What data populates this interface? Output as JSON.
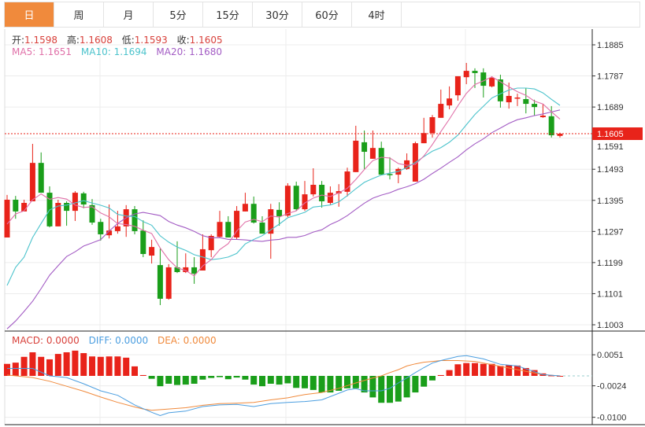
{
  "tabs": [
    {
      "label": "日",
      "active": true
    },
    {
      "label": "周"
    },
    {
      "label": "月"
    },
    {
      "label": "5分"
    },
    {
      "label": "15分"
    },
    {
      "label": "30分"
    },
    {
      "label": "60分"
    },
    {
      "label": "4时"
    }
  ],
  "ohlc_info": {
    "open_label": "开:",
    "open": "1.1598",
    "high_label": "高:",
    "high": "1.1608",
    "low_label": "低:",
    "low": "1.1593",
    "close_label": "收:",
    "close": "1.1605"
  },
  "ma_info": {
    "ma5": "MA5: 1.1651",
    "ma10": "MA10: 1.1694",
    "ma20": "MA20: 1.1680"
  },
  "macd_info": {
    "macd": "MACD: 0.0000",
    "diff": "DIFF: 0.0000",
    "dea": "DEA: 0.0000"
  },
  "colors": {
    "up": "#e8231a",
    "down": "#1a9e1a",
    "ma5": "#e070a8",
    "ma10": "#4cc3cc",
    "ma20": "#a35cc4",
    "diff": "#4b9ee0",
    "dea": "#f08a3c",
    "accent": "#f08a3c",
    "info_value": "#d8403a"
  },
  "current_price": "1.1605",
  "chart_data": [
    {
      "type": "candlestick",
      "price_ticks": [
        "1.1885",
        "1.1787",
        "1.1689",
        "1.1591",
        "1.1493",
        "1.1395",
        "1.1297",
        "1.1199",
        "1.1101",
        "1.1003"
      ],
      "ylim": [
        1.1003,
        1.1885
      ],
      "grid": true,
      "candles": [
        [
          1.1278,
          1.1412,
          1.1278,
          1.1397
        ],
        [
          1.1397,
          1.1409,
          1.1337,
          1.136
        ],
        [
          1.136,
          1.1397,
          1.136,
          1.1387
        ],
        [
          1.1392,
          1.1573,
          1.1392,
          1.1513
        ],
        [
          1.1513,
          1.1546,
          1.1419,
          1.1419
        ],
        [
          1.1419,
          1.1439,
          1.131,
          1.1313
        ],
        [
          1.1313,
          1.1397,
          1.1313,
          1.1387
        ],
        [
          1.1387,
          1.1392,
          1.1315,
          1.1362
        ],
        [
          1.1362,
          1.1424,
          1.133,
          1.1419
        ],
        [
          1.1417,
          1.1422,
          1.137,
          1.1382
        ],
        [
          1.138,
          1.1399,
          1.1318,
          1.1325
        ],
        [
          1.1327,
          1.1337,
          1.1268,
          1.1288
        ],
        [
          1.1285,
          1.1382,
          1.1275,
          1.13
        ],
        [
          1.1298,
          1.1362,
          1.129,
          1.1313
        ],
        [
          1.1313,
          1.138,
          1.128,
          1.1367
        ],
        [
          1.1367,
          1.1377,
          1.1288,
          1.1298
        ],
        [
          1.13,
          1.1332,
          1.1216,
          1.1226
        ],
        [
          1.1221,
          1.1271,
          1.1196,
          1.1248
        ],
        [
          1.1191,
          1.1243,
          1.1065,
          1.1085
        ],
        [
          1.1085,
          1.1194,
          1.1082,
          1.1184
        ],
        [
          1.1184,
          1.1266,
          1.1166,
          1.1169
        ],
        [
          1.1169,
          1.1228,
          1.1166,
          1.1184
        ],
        [
          1.1184,
          1.1216,
          1.1132,
          1.1164
        ],
        [
          1.1174,
          1.1288,
          1.1174,
          1.1241
        ],
        [
          1.1238,
          1.1288,
          1.1216,
          1.1283
        ],
        [
          1.128,
          1.1362,
          1.1278,
          1.1327
        ],
        [
          1.1327,
          1.1345,
          1.1278,
          1.1278
        ],
        [
          1.1278,
          1.1377,
          1.1273,
          1.1362
        ],
        [
          1.136,
          1.1419,
          1.136,
          1.1384
        ],
        [
          1.1384,
          1.1407,
          1.1322,
          1.1325
        ],
        [
          1.1325,
          1.1345,
          1.129,
          1.129
        ],
        [
          1.129,
          1.1384,
          1.1211,
          1.1367
        ],
        [
          1.1365,
          1.1389,
          1.1315,
          1.1345
        ],
        [
          1.1347,
          1.1449,
          1.1342,
          1.1441
        ],
        [
          1.1441,
          1.1454,
          1.1362,
          1.1367
        ],
        [
          1.1367,
          1.1456,
          1.1362,
          1.1414
        ],
        [
          1.1414,
          1.1496,
          1.1407,
          1.1444
        ],
        [
          1.1444,
          1.1456,
          1.1372,
          1.1392
        ],
        [
          1.1387,
          1.1439,
          1.1382,
          1.1419
        ],
        [
          1.1417,
          1.1446,
          1.1375,
          1.1424
        ],
        [
          1.1422,
          1.1498,
          1.1407,
          1.1486
        ],
        [
          1.1484,
          1.163,
          1.1484,
          1.1583
        ],
        [
          1.1578,
          1.1615,
          1.1494,
          1.1548
        ],
        [
          1.1526,
          1.1615,
          1.1526,
          1.156
        ],
        [
          1.156,
          1.158,
          1.1476,
          1.1476
        ],
        [
          1.1478,
          1.1531,
          1.1461,
          1.1476
        ],
        [
          1.1476,
          1.1498,
          1.1449,
          1.1494
        ],
        [
          1.1494,
          1.1543,
          1.1491,
          1.1521
        ],
        [
          1.1454,
          1.158,
          1.1454,
          1.1575
        ],
        [
          1.1575,
          1.1655,
          1.1575,
          1.1607
        ],
        [
          1.1607,
          1.1664,
          1.1593,
          1.1657
        ],
        [
          1.1655,
          1.1744,
          1.1655,
          1.1699
        ],
        [
          1.1694,
          1.1754,
          1.1682,
          1.1716
        ],
        [
          1.1726,
          1.1786,
          1.1709,
          1.1786
        ],
        [
          1.1783,
          1.1828,
          1.1761,
          1.1803
        ],
        [
          1.1803,
          1.1811,
          1.1749,
          1.1796
        ],
        [
          1.1798,
          1.1811,
          1.1719,
          1.1756
        ],
        [
          1.1754,
          1.1786,
          1.1751,
          1.1781
        ],
        [
          1.1776,
          1.1791,
          1.1687,
          1.1707
        ],
        [
          1.1704,
          1.1766,
          1.1684,
          1.1724
        ],
        [
          1.1716,
          1.1731,
          1.1692,
          1.1719
        ],
        [
          1.1714,
          1.1749,
          1.1669,
          1.1699
        ],
        [
          1.1699,
          1.1712,
          1.1662,
          1.1689
        ],
        [
          1.1657,
          1.1699,
          1.1655,
          1.1662
        ],
        [
          1.166,
          1.1692,
          1.1593,
          1.16
        ],
        [
          1.1598,
          1.1608,
          1.1593,
          1.1605
        ]
      ],
      "ma_leading": {
        "ma5": [
          1.132,
          1.1352,
          1.1362,
          1.1397
        ],
        "ma10": [
          1.1127,
          1.1184,
          1.1216,
          1.1278,
          1.1322,
          1.1365,
          1.1377,
          1.138,
          1.1387
        ],
        "ma20": [
          1.099,
          1.1015,
          1.1045,
          1.1077,
          1.1117,
          1.1159,
          1.1189,
          1.1218,
          1.1233,
          1.1251,
          1.1261,
          1.1271,
          1.1298,
          1.1322,
          1.134,
          1.1352,
          1.1357,
          1.1352,
          1.1347
        ]
      }
    },
    {
      "type": "bar+line",
      "name": "MACD",
      "macd_ticks": [
        "0.0051",
        "-0.0024",
        "-0.0100"
      ],
      "ylim": [
        -0.01,
        0.0051
      ],
      "histogram": [
        0.0029,
        0.0032,
        0.0046,
        0.0057,
        0.0046,
        0.004,
        0.0053,
        0.0057,
        0.0061,
        0.0055,
        0.0047,
        0.0046,
        0.0047,
        0.0047,
        0.0044,
        0.0023,
        0.0002,
        -0.0007,
        -0.0025,
        -0.0019,
        -0.0022,
        -0.0021,
        -0.0019,
        -0.0009,
        -0.0005,
        -0.0003,
        -0.0008,
        -0.0004,
        -0.0009,
        -0.0021,
        -0.0025,
        -0.0019,
        -0.0021,
        -0.0018,
        -0.0029,
        -0.003,
        -0.0034,
        -0.004,
        -0.004,
        -0.0036,
        -0.003,
        -0.003,
        -0.004,
        -0.0052,
        -0.0065,
        -0.0065,
        -0.0062,
        -0.0052,
        -0.004,
        -0.0026,
        -0.0011,
        0.0002,
        0.0014,
        0.0028,
        0.0031,
        0.0031,
        0.0029,
        0.0029,
        0.0024,
        0.0026,
        0.0025,
        0.0019,
        0.0014,
        0.0006,
        0.0001,
        0.0
      ],
      "diff": [
        [
          1,
          0.0018
        ],
        [
          4,
          0.0018
        ],
        [
          6,
          0.0
        ],
        [
          8,
          -0.0004
        ],
        [
          10,
          -0.0019
        ],
        [
          12,
          -0.0036
        ],
        [
          14,
          -0.0047
        ],
        [
          16,
          -0.007
        ],
        [
          18,
          -0.0088
        ],
        [
          19,
          -0.0096
        ],
        [
          20,
          -0.0089
        ],
        [
          22,
          -0.0085
        ],
        [
          24,
          -0.0074
        ],
        [
          26,
          -0.007
        ],
        [
          28,
          -0.0069
        ],
        [
          30,
          -0.0074
        ],
        [
          32,
          -0.0067
        ],
        [
          34,
          -0.0064
        ],
        [
          36,
          -0.0062
        ],
        [
          37,
          -0.006
        ],
        [
          38,
          -0.0058
        ],
        [
          40,
          -0.0042
        ],
        [
          41,
          -0.0034
        ],
        [
          42,
          -0.0031
        ],
        [
          43,
          -0.0036
        ],
        [
          45,
          -0.0036
        ],
        [
          46,
          -0.003
        ],
        [
          47,
          -0.0017
        ],
        [
          48,
          -0.0005
        ],
        [
          49,
          0.0008
        ],
        [
          50,
          0.002
        ],
        [
          51,
          0.0031
        ],
        [
          52,
          0.0037
        ],
        [
          54,
          0.0047
        ],
        [
          55,
          0.0049
        ],
        [
          57,
          0.0041
        ],
        [
          59,
          0.0028
        ],
        [
          61,
          0.0024
        ],
        [
          63,
          0.001
        ],
        [
          64,
          0.0003
        ],
        [
          66,
          0.0
        ]
      ],
      "dea": [
        [
          1,
          0.0002
        ],
        [
          4,
          -0.0004
        ],
        [
          6,
          -0.0013
        ],
        [
          8,
          -0.0025
        ],
        [
          10,
          -0.0037
        ],
        [
          12,
          -0.0051
        ],
        [
          14,
          -0.0064
        ],
        [
          16,
          -0.0075
        ],
        [
          17,
          -0.008
        ],
        [
          18,
          -0.0083
        ],
        [
          20,
          -0.008
        ],
        [
          22,
          -0.0077
        ],
        [
          24,
          -0.0071
        ],
        [
          26,
          -0.0067
        ],
        [
          28,
          -0.0066
        ],
        [
          30,
          -0.0064
        ],
        [
          32,
          -0.0058
        ],
        [
          34,
          -0.0053
        ],
        [
          36,
          -0.0045
        ],
        [
          38,
          -0.004
        ],
        [
          40,
          -0.003
        ],
        [
          42,
          -0.0017
        ],
        [
          44,
          -0.0005
        ],
        [
          45,
          0.0
        ],
        [
          46,
          0.0008
        ],
        [
          47,
          0.0015
        ],
        [
          48,
          0.0024
        ],
        [
          49,
          0.0029
        ],
        [
          50,
          0.0033
        ],
        [
          51,
          0.0035
        ],
        [
          52,
          0.0037
        ],
        [
          54,
          0.0037
        ],
        [
          56,
          0.0035
        ],
        [
          58,
          0.0027
        ],
        [
          60,
          0.0019
        ],
        [
          62,
          0.0011
        ],
        [
          64,
          0.0003
        ],
        [
          66,
          0.0
        ]
      ]
    }
  ]
}
